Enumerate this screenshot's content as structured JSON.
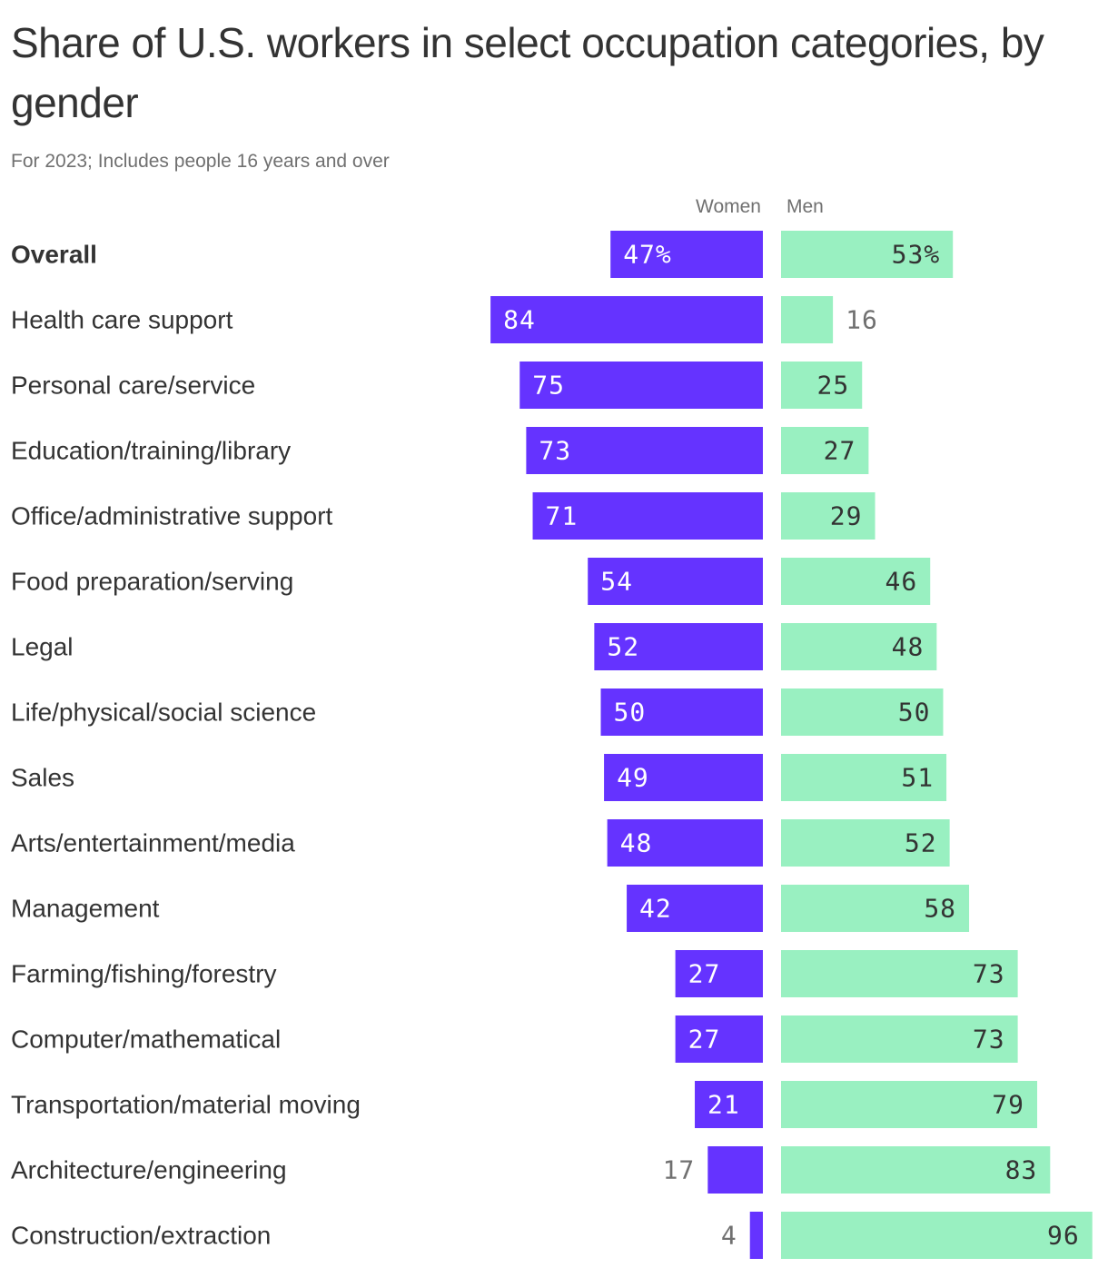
{
  "title": "Share of U.S. workers in select occupation categories, by gender",
  "subtitle": "For 2023; Includes people 16 years and over",
  "colors": {
    "women": "#6533ff",
    "men": "#99f0c1",
    "text": "#333333",
    "muted": "#707070"
  },
  "chart_data": {
    "type": "bar",
    "orientation": "horizontal-diverging",
    "unit": "%",
    "series": [
      {
        "name": "Women",
        "values": [
          47,
          84,
          75,
          73,
          71,
          54,
          52,
          50,
          49,
          48,
          42,
          27,
          27,
          21,
          17,
          4
        ]
      },
      {
        "name": "Men",
        "values": [
          53,
          16,
          25,
          27,
          29,
          46,
          48,
          50,
          51,
          52,
          58,
          73,
          73,
          79,
          83,
          96
        ]
      }
    ],
    "categories": [
      "Overall",
      "Health care support",
      "Personal care/service",
      "Education/training/library",
      "Office/administrative support",
      "Food preparation/serving",
      "Legal",
      "Life/physical/social science",
      "Sales",
      "Arts/entertainment/media",
      "Management",
      "Farming/fishing/forestry",
      "Computer/mathematical",
      "Transportation/material moving",
      "Architecture/engineering",
      "Construction/extraction"
    ],
    "value_labels": {
      "women": [
        "47%",
        "84",
        "75",
        "73",
        "71",
        "54",
        "52",
        "50",
        "49",
        "48",
        "42",
        "27",
        "27",
        "21",
        "17",
        "4"
      ],
      "men": [
        "53%",
        "16",
        "25",
        "27",
        "29",
        "46",
        "48",
        "50",
        "51",
        "52",
        "58",
        "73",
        "73",
        "79",
        "83",
        "96"
      ]
    },
    "xlim": [
      0,
      100
    ],
    "legend": "top"
  }
}
